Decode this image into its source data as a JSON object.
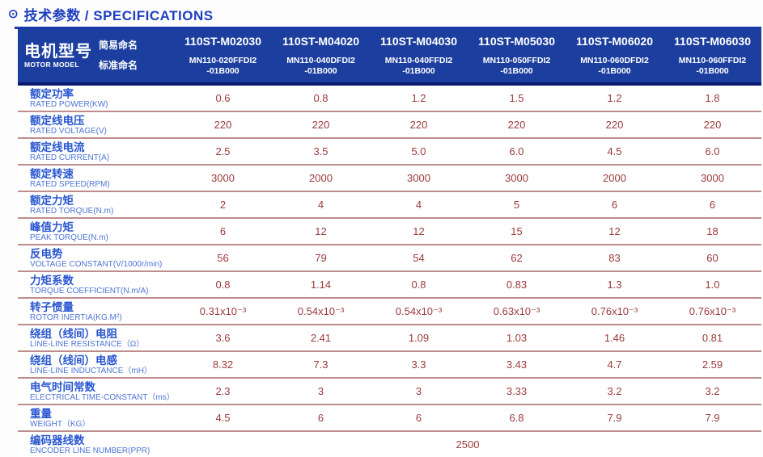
{
  "page": {
    "title_icon": "⊙",
    "title_text": "技术参数 / SPECIFICATIONS"
  },
  "colors": {
    "header_bg": "#1c3f9f",
    "header_border": "#0a1a70",
    "title_blue": "#1e3fbe",
    "label_zh_blue": "#2a57d0",
    "label_en_blue": "#4d74d6",
    "value_red": "#9b3a3a",
    "separator_pink": "#bd8d8d"
  },
  "table": {
    "corner": {
      "zh": "电机型号",
      "en": "MOTOR MODEL",
      "simple_label": "简易命名",
      "standard_label": "标准命名"
    },
    "columns": [
      {
        "model": "110ST-M02030",
        "std1": "MN110-020FFDI2",
        "std2": "-01B000"
      },
      {
        "model": "110ST-M04020",
        "std1": "MN110-040DFDI2",
        "std2": "-01B000"
      },
      {
        "model": "110ST-M04030",
        "std1": "MN110-040FFDI2",
        "std2": "-01B000"
      },
      {
        "model": "110ST-M05030",
        "std1": "MN110-050FFDI2",
        "std2": "-01B000"
      },
      {
        "model": "110ST-M06020",
        "std1": "MN110-060DFDI2",
        "std2": "-01B000"
      },
      {
        "model": "110ST-M06030",
        "std1": "MN110-060FFDI2",
        "std2": "-01B000"
      }
    ],
    "rows": [
      {
        "zh": "额定功率",
        "en": "RATED POWER(KW)",
        "values": [
          "0.6",
          "0.8",
          "1.2",
          "1.5",
          "1.2",
          "1.8"
        ]
      },
      {
        "zh": "额定线电压",
        "en": "RATED VOLTAGE(V)",
        "values": [
          "220",
          "220",
          "220",
          "220",
          "220",
          "220"
        ]
      },
      {
        "zh": "额定线电流",
        "en": "RATED CURRENT(A)",
        "values": [
          "2.5",
          "3.5",
          "5.0",
          "6.0",
          "4.5",
          "6.0"
        ]
      },
      {
        "zh": "额定转速",
        "en": "RATED SPEED(RPM)",
        "values": [
          "3000",
          "2000",
          "3000",
          "3000",
          "2000",
          "3000"
        ]
      },
      {
        "zh": "额定力矩",
        "en": "RATED TORQUE(N.m)",
        "values": [
          "2",
          "4",
          "4",
          "5",
          "6",
          "6"
        ]
      },
      {
        "zh": "峰值力矩",
        "en": "PEAK TORQUE(N.m)",
        "values": [
          "6",
          "12",
          "12",
          "15",
          "12",
          "18"
        ]
      },
      {
        "zh": "反电势",
        "en": "VOLTAGE CONSTANT(V/1000r/min)",
        "values": [
          "56",
          "79",
          "54",
          "62",
          "83",
          "60"
        ]
      },
      {
        "zh": "力矩系数",
        "en": "TORQUE COEFFICIENT(N.m/A)",
        "values": [
          "0.8",
          "1.14",
          "0.8",
          "0.83",
          "1.3",
          "1.0"
        ]
      },
      {
        "zh": "转子惯量",
        "en": "ROTOR INERTIA(KG.M²)",
        "values": [
          "0.31x10⁻³",
          "0.54x10⁻³",
          "0.54x10⁻³",
          "0.63x10⁻³",
          "0.76x10⁻³",
          "0.76x10⁻³"
        ]
      },
      {
        "zh": "绕组（线间）电阻",
        "en": "LINE-LINE RESISTANCE（Ω）",
        "values": [
          "3.6",
          "2.41",
          "1.09",
          "1.03",
          "1.46",
          "0.81"
        ]
      },
      {
        "zh": "绕组（线间）电感",
        "en": "LINE-LINE INDUCTANCE（mH）",
        "values": [
          "8.32",
          "7.3",
          "3.3",
          "3.43",
          "4.7",
          "2.59"
        ]
      },
      {
        "zh": "电气时间常数",
        "en": "ELECTRICAL TIME-CONSTANT（ms）",
        "values": [
          "2.3",
          "3",
          "3",
          "3.33",
          "3.2",
          "3.2"
        ]
      },
      {
        "zh": "重量",
        "en": "WEIGHT（KG）",
        "values": [
          "4.5",
          "6",
          "6",
          "6.8",
          "7.9",
          "7.9"
        ]
      },
      {
        "zh": "编码器线数",
        "en": "ENCODER LINE NUMBER(PPR)",
        "values": [
          "2500"
        ],
        "span_all": true
      }
    ]
  }
}
